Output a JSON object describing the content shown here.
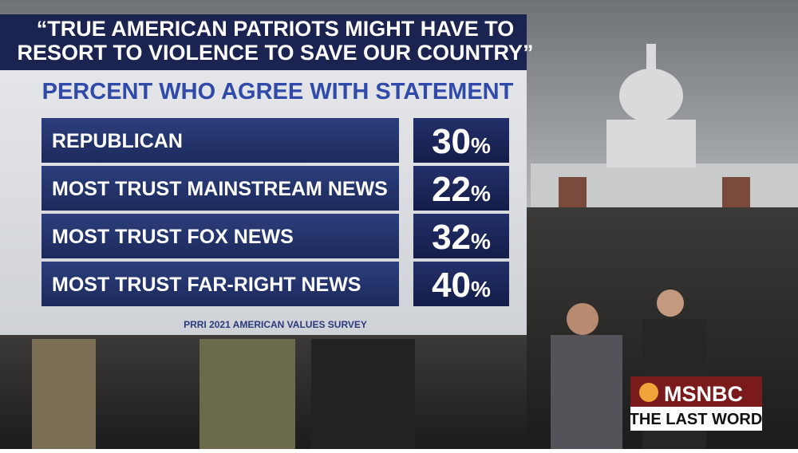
{
  "graphic": {
    "title_lines": [
      "“TRUE AMERICAN PATRIOTS MIGHT HAVE TO",
      "RESORT TO VIOLENCE TO SAVE OUR COUNTRY”"
    ],
    "subtitle": "PERCENT WHO AGREE WITH STATEMENT",
    "rows": [
      {
        "label": "REPUBLICAN",
        "value": "30",
        "unit": "%"
      },
      {
        "label": "MOST TRUST MAINSTREAM NEWS",
        "value": "22",
        "unit": "%"
      },
      {
        "label": "MOST TRUST FOX NEWS",
        "value": "32",
        "unit": "%"
      },
      {
        "label": "MOST TRUST FAR-RIGHT NEWS",
        "value": "40",
        "unit": "%"
      }
    ],
    "source": "PRRI 2021 AMERICAN VALUES SURVEY"
  },
  "logo": {
    "network": "MSNBC",
    "show": "THE LAST WORD"
  }
}
